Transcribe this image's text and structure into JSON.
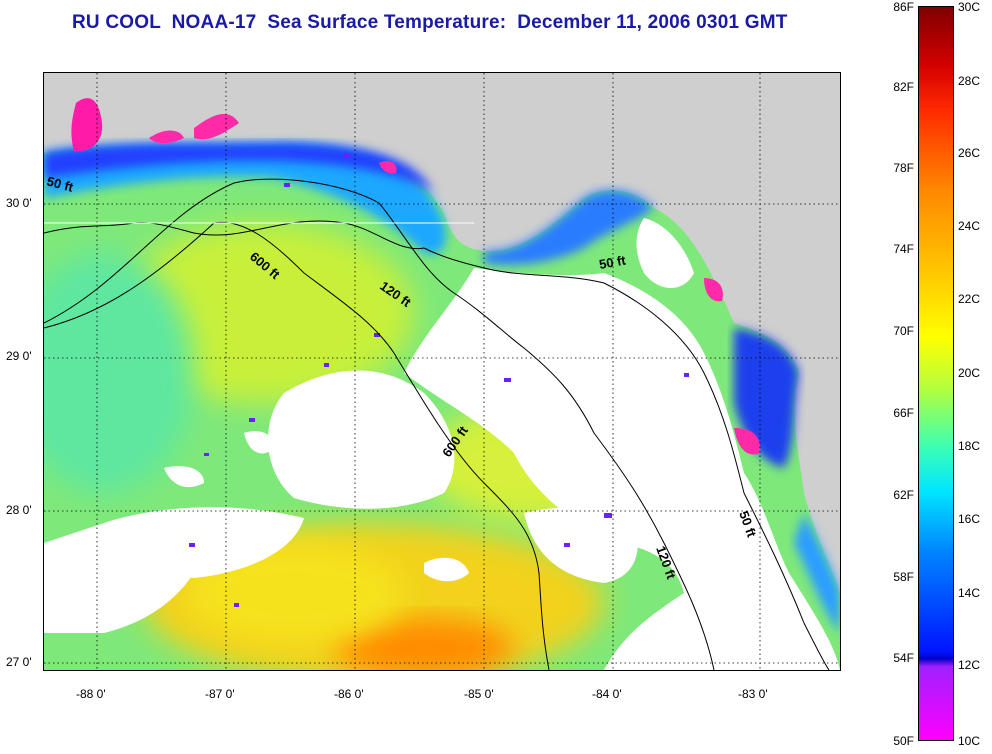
{
  "title": "RU COOL  NOAA-17  Sea Surface Temperature:  December 11, 2006 0301 GMT",
  "map": {
    "lat_ticks": [
      "30 0'",
      "29 0'",
      "28 0'",
      "27 0'"
    ],
    "lon_ticks": [
      "-88 0'",
      "-87 0'",
      "-86 0'",
      "-85 0'",
      "-84 0'",
      "-83 0'"
    ],
    "contour_labels": {
      "c50_west": "50 ft",
      "c600_north": "600 ft",
      "c120_north": "120 ft",
      "c50_east": "50 ft",
      "c600_south": "600 ft",
      "c120_south": "120 ft",
      "c50_south": "50 ft"
    },
    "colors": {
      "land": "#cfcfcf",
      "cloud": "#ffffff",
      "contour_line": "#000000",
      "label_text": "#000000"
    }
  },
  "colorbar": {
    "fahrenheit": [
      "86F",
      "82F",
      "78F",
      "74F",
      "70F",
      "66F",
      "62F",
      "58F",
      "54F",
      "50F"
    ],
    "celsius": [
      "30C",
      "28C",
      "26C",
      "24C",
      "22C",
      "20C",
      "18C",
      "16C",
      "14C",
      "12C",
      "10C"
    ]
  }
}
